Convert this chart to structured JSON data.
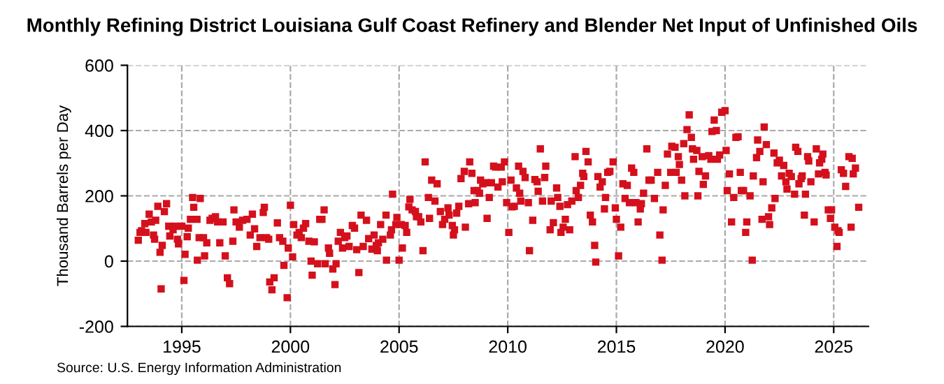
{
  "chart_data": {
    "type": "scatter",
    "title": "Monthly Refining District Louisiana Gulf Coast Refinery and Blender Net Input of Unfinished Oils",
    "ylabel": "Thousand Barrels per Day",
    "annotations": [
      "Source: U.S. Energy Information Administration"
    ],
    "xlim": [
      1992.5,
      2026.6
    ],
    "xticks": [
      1995,
      2000,
      2005,
      2010,
      2015,
      2020,
      2025
    ],
    "ylim": [
      -200,
      600
    ],
    "yticks": [
      -200,
      0,
      200,
      400,
      600
    ],
    "grid": true,
    "marker": "square",
    "series": [
      {
        "color": "#d4101c",
        "x": [
          1993.0,
          1993.08,
          1993.15,
          1993.3,
          1993.35,
          1993.5,
          1993.6,
          1993.7,
          1993.75,
          1993.8,
          1993.9,
          1994.0,
          1994.05,
          1994.1,
          1994.2,
          1994.3,
          1994.4,
          1994.45,
          1994.6,
          1994.7,
          1994.8,
          1994.85,
          1995.0,
          1995.1,
          1995.15,
          1995.25,
          1995.3,
          1995.4,
          1995.5,
          1995.55,
          1995.7,
          1995.72,
          1995.85,
          1995.8,
          1996.0,
          1996.05,
          1996.15,
          1996.3,
          1996.4,
          1996.55,
          1996.65,
          1996.75,
          1996.9,
          1997.0,
          1997.1,
          1997.2,
          1997.35,
          1997.4,
          1997.5,
          1997.65,
          1997.8,
          1998.0,
          1998.15,
          1998.25,
          1998.35,
          1998.45,
          1998.6,
          1998.75,
          1998.8,
          1998.9,
          1999.0,
          1999.05,
          1999.15,
          1999.25,
          1999.4,
          1999.5,
          1999.65,
          1999.7,
          1999.85,
          1999.9,
          2000.0,
          2000.1,
          2000.15,
          2000.3,
          2000.4,
          2000.5,
          2000.6,
          2000.7,
          2000.85,
          2000.95,
          2001.0,
          2001.1,
          2001.25,
          2001.35,
          2001.45,
          2001.55,
          2001.6,
          2001.75,
          2001.8,
          2001.95,
          2002.05,
          2002.1,
          2002.2,
          2002.3,
          2002.4,
          2002.5,
          2002.6,
          2002.7,
          2002.85,
          2002.95,
          2003.05,
          2003.15,
          2003.25,
          2003.35,
          2003.5,
          2003.6,
          2003.75,
          2003.85,
          2003.95,
          2004.0,
          2004.05,
          2004.15,
          2004.25,
          2004.4,
          2004.42,
          2004.6,
          2004.65,
          2004.7,
          2004.85,
          2004.9,
          2005.0,
          2005.1,
          2005.15,
          2005.28,
          2005.35,
          2005.45,
          2005.5,
          2005.6,
          2005.75,
          2005.8,
          2005.9,
          2006.0,
          2006.1,
          2006.2,
          2006.35,
          2006.4,
          2006.5,
          2006.65,
          2006.75,
          2006.9,
          2007.0,
          2007.1,
          2007.25,
          2007.3,
          2007.45,
          2007.5,
          2007.55,
          2007.65,
          2007.75,
          2007.85,
          2008.0,
          2008.05,
          2008.2,
          2008.25,
          2008.35,
          2008.45,
          2008.5,
          2008.6,
          2008.7,
          2008.75,
          2008.85,
          2009.0,
          2009.05,
          2009.15,
          2009.25,
          2009.35,
          2009.45,
          2009.55,
          2009.7,
          2009.75,
          2009.85,
          2009.95,
          2010.05,
          2010.15,
          2010.2,
          2010.3,
          2010.4,
          2010.5,
          2010.55,
          2010.6,
          2010.7,
          2010.8,
          2010.95,
          2011.0,
          2011.15,
          2011.25,
          2011.35,
          2011.4,
          2011.5,
          2011.6,
          2011.7,
          2011.75,
          2011.95,
          2012.0,
          2012.1,
          2012.25,
          2012.3,
          2012.4,
          2012.45,
          2012.55,
          2012.65,
          2012.75,
          2012.85,
          2012.95,
          2013.1,
          2013.15,
          2013.25,
          2013.35,
          2013.45,
          2013.5,
          2013.6,
          2013.7,
          2013.8,
          2013.9,
          2014.0,
          2014.05,
          2014.15,
          2014.25,
          2014.35,
          2014.45,
          2014.5,
          2014.6,
          2014.7,
          2014.85,
          2014.95,
          2015.0,
          2015.1,
          2015.2,
          2015.3,
          2015.4,
          2015.5,
          2015.6,
          2015.7,
          2015.8,
          2015.9,
          2016.0,
          2016.1,
          2016.15,
          2016.25,
          2016.4,
          2016.5,
          2016.6,
          2016.75,
          2016.9,
          2017.0,
          2017.1,
          2017.15,
          2017.25,
          2017.35,
          2017.5,
          2017.55,
          2017.7,
          2017.75,
          2017.85,
          2017.9,
          2018.0,
          2018.1,
          2018.15,
          2018.25,
          2018.35,
          2018.45,
          2018.5,
          2018.55,
          2018.7,
          2018.75,
          2018.8,
          2018.95,
          2019.0,
          2019.1,
          2019.25,
          2019.35,
          2019.4,
          2019.5,
          2019.6,
          2019.65,
          2019.75,
          2019.85,
          2020.0,
          2020.05,
          2020.1,
          2020.2,
          2020.3,
          2020.4,
          2020.5,
          2020.6,
          2020.7,
          2020.75,
          2020.85,
          2020.95,
          2021.0,
          2021.15,
          2021.25,
          2021.3,
          2021.45,
          2021.5,
          2021.6,
          2021.7,
          2021.75,
          2021.8,
          2021.9,
          2022.0,
          2022.05,
          2022.15,
          2022.25,
          2022.3,
          2022.4,
          2022.5,
          2022.6,
          2022.7,
          2022.8,
          2022.85,
          2022.95,
          2023.05,
          2023.2,
          2023.25,
          2023.35,
          2023.4,
          2023.5,
          2023.55,
          2023.65,
          2023.7,
          2023.8,
          2023.85,
          2023.95,
          2024.1,
          2024.2,
          2024.3,
          2024.35,
          2024.45,
          2024.5,
          2024.6,
          2024.65,
          2024.75,
          2024.85,
          2024.9,
          2025.05,
          2025.15,
          2025.2,
          2025.25,
          2025.35,
          2025.45,
          2025.55,
          2025.7,
          2025.8,
          2025.85,
          2025.9,
          2026.0,
          2026.15
        ],
        "values": [
          64,
          88,
          93,
          115,
          88,
          144,
          120,
          80,
          67,
          125,
          168,
          27,
          -85,
          48,
          152,
          176,
          107,
          77,
          96,
          107,
          67,
          53,
          107,
          -59,
          21,
          75,
          101,
          128,
          195,
          165,
          128,
          3,
          192,
          72,
          72,
          16,
          56,
          125,
          131,
          136,
          120,
          56,
          120,
          16,
          -51,
          -69,
          61,
          157,
          120,
          104,
          125,
          128,
          80,
          144,
          99,
          45,
          72,
          149,
          165,
          72,
          67,
          -64,
          -88,
          -51,
          117,
          72,
          61,
          -13,
          -112,
          40,
          171,
          13,
          112,
          80,
          88,
          72,
          101,
          115,
          61,
          0,
          -43,
          59,
          -8,
          128,
          128,
          157,
          -8,
          40,
          24,
          -24,
          -72,
          -8,
          61,
          88,
          40,
          72,
          77,
          45,
          109,
          101,
          35,
          -35,
          141,
          45,
          125,
          69,
          37,
          80,
          48,
          32,
          56,
          112,
          67,
          141,
          3,
          80,
          96,
          205,
          112,
          134,
          3,
          112,
          40,
          109,
          88,
          166,
          189,
          157,
          152,
          136,
          136,
          120,
          32,
          304,
          195,
          131,
          248,
          184,
          237,
          152,
          112,
          128,
          163,
          141,
          109,
          80,
          96,
          147,
          168,
          253,
          275,
          104,
          176,
          304,
          269,
          216,
          179,
          216,
          208,
          248,
          237,
          240,
          131,
          195,
          240,
          291,
          288,
          227,
          288,
          243,
          304,
          179,
          88,
          248,
          166,
          168,
          224,
          291,
          208,
          184,
          275,
          256,
          179,
          32,
          125,
          250,
          243,
          214,
          344,
          184,
          256,
          291,
          96,
          184,
          118,
          224,
          195,
          168,
          88,
          104,
          128,
          173,
          96,
          184,
          320,
          216,
          195,
          232,
          269,
          259,
          336,
          304,
          141,
          120,
          48,
          -3,
          259,
          227,
          243,
          160,
          195,
          272,
          275,
          304,
          163,
          128,
          16,
          104,
          237,
          192,
          232,
          179,
          285,
          272,
          179,
          120,
          160,
          176,
          208,
          344,
          248,
          248,
          192,
          272,
          80,
          3,
          157,
          232,
          328,
          272,
          352,
          349,
          272,
          320,
          296,
          248,
          360,
          200,
          403,
          448,
          379,
          344,
          312,
          339,
          200,
          275,
          320,
          235,
          261,
          323,
          312,
          397,
          432,
          400,
          312,
          325,
          456,
          461,
          339,
          216,
          267,
          120,
          195,
          379,
          381,
          272,
          216,
          216,
          88,
          120,
          200,
          3,
          261,
          317,
          371,
          336,
          128,
          243,
          411,
          357,
          136,
          112,
          163,
          331,
          192,
          301,
          309,
          261,
          293,
          243,
          221,
          269,
          259,
          205,
          349,
          336,
          237,
          253,
          261,
          141,
          205,
          320,
          307,
          243,
          120,
          344,
          267,
          301,
          312,
          328,
          272,
          264,
          157,
          131,
          157,
          104,
          45,
          93,
          88,
          280,
          269,
          229,
          320,
          104,
          315,
          267,
          285,
          165
        ]
      }
    ]
  }
}
